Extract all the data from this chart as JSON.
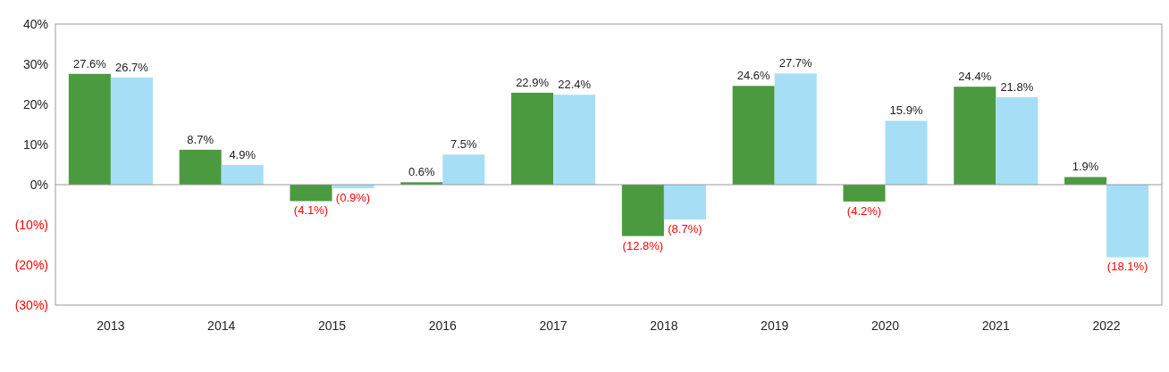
{
  "chart_data": {
    "type": "bar",
    "categories": [
      "2013",
      "2014",
      "2015",
      "2016",
      "2017",
      "2018",
      "2019",
      "2020",
      "2021",
      "2022"
    ],
    "series": [
      {
        "color": "#4c9a3f",
        "values": [
          27.6,
          8.7,
          -4.1,
          0.6,
          22.9,
          -12.8,
          24.6,
          -4.2,
          24.4,
          1.9
        ],
        "value_labels": [
          "27.6%",
          "8.7%",
          "(4.1%)",
          "0.6%",
          "22.9%",
          "(12.8%)",
          "24.6%",
          "(4.2%)",
          "24.4%",
          "1.9%"
        ]
      },
      {
        "color": "#a6dff5",
        "values": [
          26.7,
          4.9,
          -0.9,
          7.5,
          22.4,
          -8.7,
          27.7,
          15.9,
          21.8,
          -18.1
        ],
        "value_labels": [
          "26.7%",
          "4.9%",
          "(0.9%)",
          "7.5%",
          "22.4%",
          "(8.7%)",
          "27.7%",
          "15.9%",
          "21.8%",
          "(18.1%)"
        ]
      }
    ],
    "ylim": [
      -30,
      40
    ],
    "yticks": [
      {
        "value": -30,
        "label": "(30%)"
      },
      {
        "value": -20,
        "label": "(20%)"
      },
      {
        "value": -10,
        "label": "(10%)"
      },
      {
        "value": 0,
        "label": "0%"
      },
      {
        "value": 10,
        "label": "10%"
      },
      {
        "value": 20,
        "label": "20%"
      },
      {
        "value": 30,
        "label": "30%"
      },
      {
        "value": 40,
        "label": "40%"
      }
    ],
    "legend": false
  }
}
